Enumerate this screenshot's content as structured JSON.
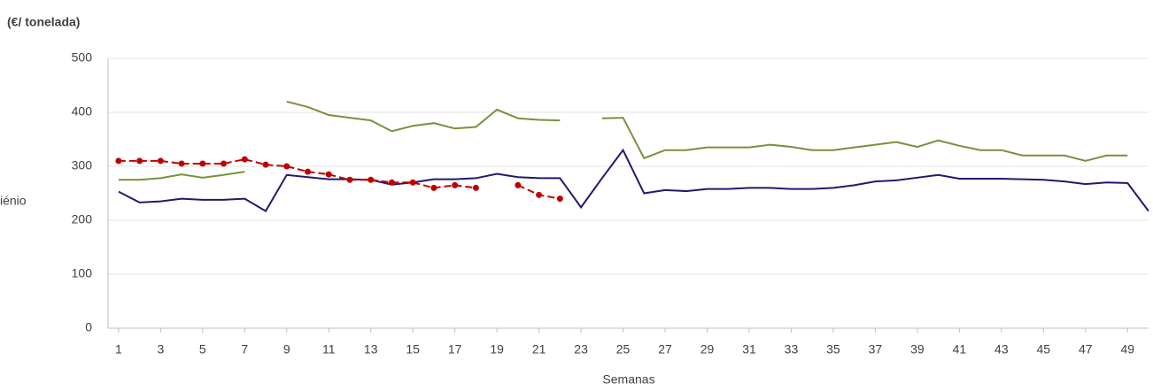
{
  "chart_data": {
    "type": "line",
    "title": "(€/ tonelada)",
    "y_label": "iénio",
    "x_label": "Semanas",
    "x": [
      1,
      2,
      3,
      4,
      5,
      6,
      7,
      8,
      9,
      10,
      11,
      12,
      13,
      14,
      15,
      16,
      17,
      18,
      19,
      20,
      21,
      22,
      23,
      24,
      25,
      26,
      27,
      28,
      29,
      30,
      31,
      32,
      33,
      34,
      35,
      36,
      37,
      38,
      39,
      40,
      41,
      42,
      43,
      44,
      45,
      46,
      47,
      48,
      49,
      50
    ],
    "xlim": [
      0.5,
      50
    ],
    "xticks": [
      1,
      3,
      5,
      7,
      9,
      11,
      13,
      15,
      17,
      19,
      21,
      23,
      25,
      27,
      29,
      31,
      33,
      35,
      37,
      39,
      41,
      43,
      45,
      47,
      49
    ],
    "ylim": [
      0,
      500
    ],
    "yticks": [
      0,
      100,
      200,
      300,
      400,
      500
    ],
    "grid": true,
    "series": [
      {
        "color": "#76933c",
        "values": [
          275,
          275,
          278,
          285,
          279,
          284,
          290,
          null,
          420,
          410,
          395,
          390,
          385,
          365,
          375,
          380,
          370,
          373,
          405,
          389,
          386,
          385,
          null,
          389,
          390,
          315,
          330,
          330,
          335,
          335,
          335,
          340,
          336,
          330,
          330,
          335,
          340,
          345,
          336,
          348,
          338,
          330,
          330,
          320,
          320,
          320,
          310,
          320,
          320,
          null
        ]
      },
      {
        "color": "#1f1a6e",
        "values": [
          253,
          233,
          235,
          240,
          238,
          238,
          240,
          217,
          284,
          280,
          276,
          276,
          275,
          266,
          270,
          276,
          276,
          278,
          286,
          280,
          278,
          278,
          224,
          278,
          330,
          250,
          256,
          254,
          258,
          258,
          260,
          260,
          258,
          258,
          260,
          265,
          272,
          274,
          279,
          284,
          277,
          277,
          277,
          276,
          275,
          272,
          267,
          270,
          269,
          217
        ]
      },
      {
        "color": "#c00000",
        "dashed": true,
        "markers": true,
        "values": [
          310,
          310,
          310,
          305,
          305,
          305,
          313,
          303,
          300,
          290,
          285,
          275,
          275,
          270,
          270,
          260,
          265,
          260,
          null,
          265,
          247,
          240,
          null,
          null,
          null,
          null,
          null,
          null,
          null,
          null,
          null,
          null,
          null,
          null,
          null,
          null,
          null,
          null,
          null,
          null,
          null,
          null,
          null,
          null,
          null,
          null,
          null,
          null,
          null,
          null
        ]
      }
    ]
  }
}
